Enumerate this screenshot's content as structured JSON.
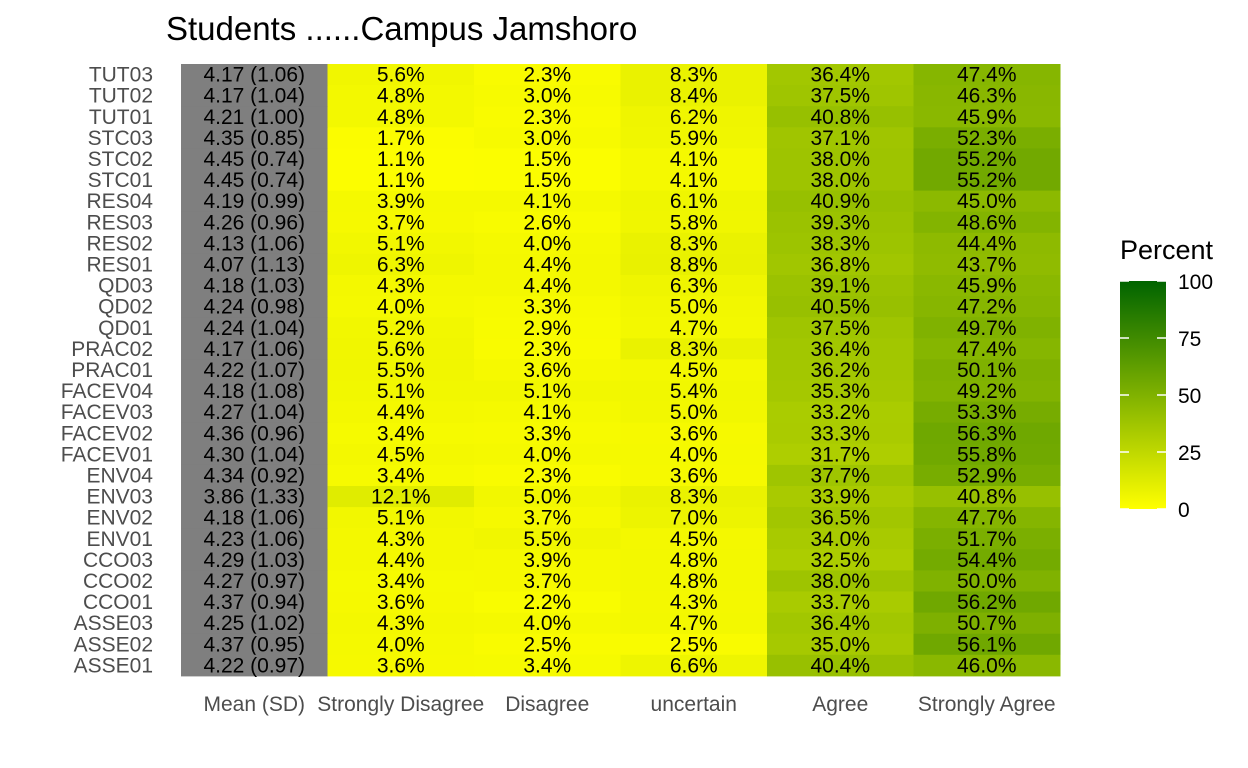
{
  "chart_data": {
    "type": "heatmap",
    "title": "Students ......Campus Jamshoro",
    "columns": [
      "Mean (SD)",
      "Strongly Disagree",
      "Disagree",
      "uncertain",
      "Agree",
      "Strongly Agree"
    ],
    "rows": [
      "TUT03",
      "TUT02",
      "TUT01",
      "STC03",
      "STC02",
      "STC01",
      "RES04",
      "RES03",
      "RES02",
      "RES01",
      "QD03",
      "QD02",
      "QD01",
      "PRAC02",
      "PRAC01",
      "FACEV04",
      "FACEV03",
      "FACEV02",
      "FACEV01",
      "ENV04",
      "ENV03",
      "ENV02",
      "ENV01",
      "CCO03",
      "CCO02",
      "CCO01",
      "ASSE03",
      "ASSE02",
      "ASSE01"
    ],
    "mean_sd": [
      "4.17 (1.06)",
      "4.17 (1.04)",
      "4.21 (1.00)",
      "4.35 (0.85)",
      "4.45 (0.74)",
      "4.45 (0.74)",
      "4.19 (0.99)",
      "4.26 (0.96)",
      "4.13 (1.06)",
      "4.07 (1.13)",
      "4.18 (1.03)",
      "4.24 (0.98)",
      "4.24 (1.04)",
      "4.17 (1.06)",
      "4.22 (1.07)",
      "4.18 (1.08)",
      "4.27 (1.04)",
      "4.36 (0.96)",
      "4.30 (1.04)",
      "4.34 (0.92)",
      "3.86 (1.33)",
      "4.18 (1.06)",
      "4.23 (1.06)",
      "4.29 (1.03)",
      "4.27 (0.97)",
      "4.37 (0.94)",
      "4.25 (1.02)",
      "4.37 (0.95)",
      "4.22 (0.97)"
    ],
    "values": [
      [
        5.6,
        2.3,
        8.3,
        36.4,
        47.4
      ],
      [
        4.8,
        3.0,
        8.4,
        37.5,
        46.3
      ],
      [
        4.8,
        2.3,
        6.2,
        40.8,
        45.9
      ],
      [
        1.7,
        3.0,
        5.9,
        37.1,
        52.3
      ],
      [
        1.1,
        1.5,
        4.1,
        38.0,
        55.2
      ],
      [
        1.1,
        1.5,
        4.1,
        38.0,
        55.2
      ],
      [
        3.9,
        4.1,
        6.1,
        40.9,
        45.0
      ],
      [
        3.7,
        2.6,
        5.8,
        39.3,
        48.6
      ],
      [
        5.1,
        4.0,
        8.3,
        38.3,
        44.4
      ],
      [
        6.3,
        4.4,
        8.8,
        36.8,
        43.7
      ],
      [
        4.3,
        4.4,
        6.3,
        39.1,
        45.9
      ],
      [
        4.0,
        3.3,
        5.0,
        40.5,
        47.2
      ],
      [
        5.2,
        2.9,
        4.7,
        37.5,
        49.7
      ],
      [
        5.6,
        2.3,
        8.3,
        36.4,
        47.4
      ],
      [
        5.5,
        3.6,
        4.5,
        36.2,
        50.1
      ],
      [
        5.1,
        5.1,
        5.4,
        35.3,
        49.2
      ],
      [
        4.4,
        4.1,
        5.0,
        33.2,
        53.3
      ],
      [
        3.4,
        3.3,
        3.6,
        33.3,
        56.3
      ],
      [
        4.5,
        4.0,
        4.0,
        31.7,
        55.8
      ],
      [
        3.4,
        2.3,
        3.6,
        37.7,
        52.9
      ],
      [
        12.1,
        5.0,
        8.3,
        33.9,
        40.8
      ],
      [
        5.1,
        3.7,
        7.0,
        36.5,
        47.7
      ],
      [
        4.3,
        5.5,
        4.5,
        34.0,
        51.7
      ],
      [
        4.4,
        3.9,
        4.8,
        32.5,
        54.4
      ],
      [
        3.4,
        3.7,
        4.8,
        38.0,
        50.0
      ],
      [
        3.6,
        2.2,
        4.3,
        33.7,
        56.2
      ],
      [
        4.3,
        4.0,
        4.7,
        36.4,
        50.7
      ],
      [
        4.0,
        2.5,
        2.5,
        35.0,
        56.1
      ],
      [
        3.6,
        3.4,
        6.6,
        40.4,
        46.0
      ]
    ],
    "mean_cell_color": "#7f7f7f",
    "legend": {
      "title": "Percent",
      "ticks": [
        100,
        75,
        50,
        25,
        0
      ],
      "range": [
        0,
        100
      ],
      "low_color": "#ffff00",
      "high_color": "#006400",
      "placement": "right"
    }
  }
}
